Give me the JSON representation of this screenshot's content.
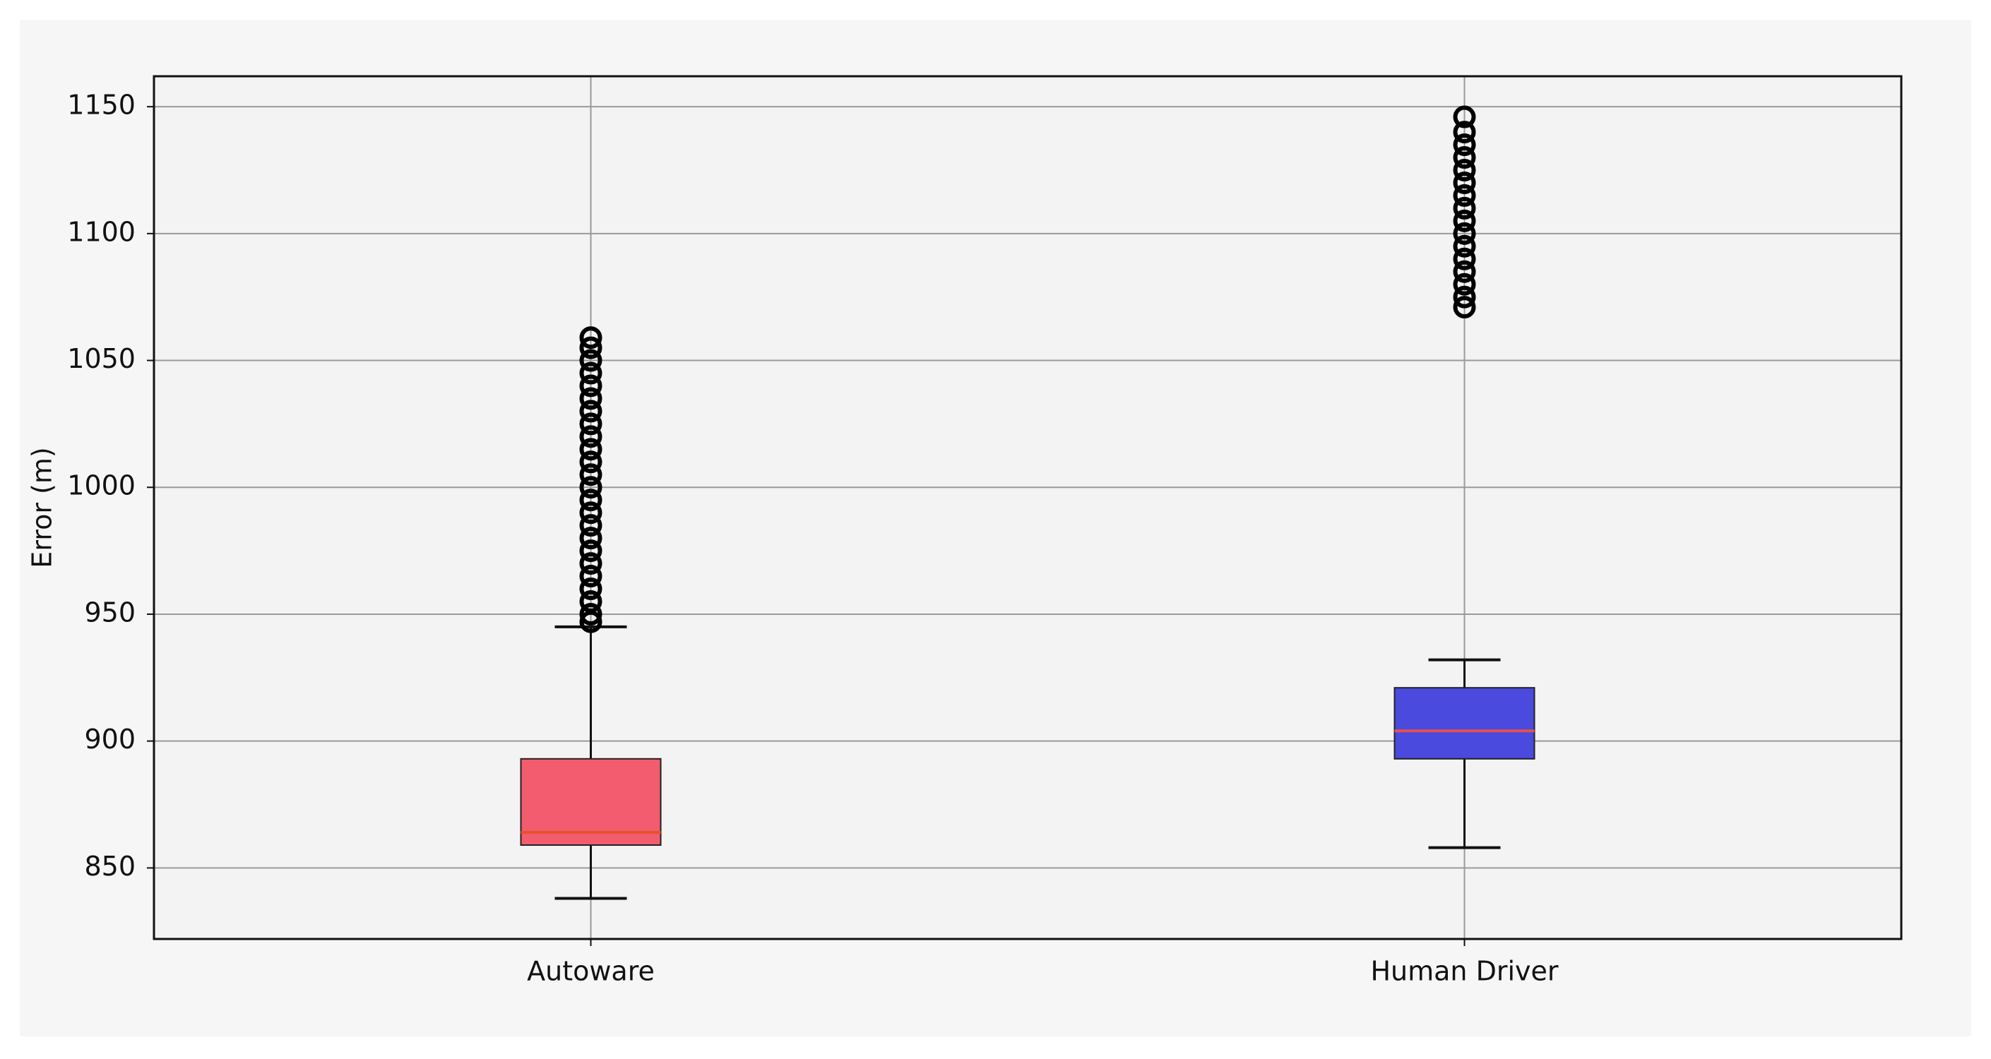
{
  "chart_data": {
    "type": "box",
    "y_label": "Error (m)",
    "ylim": [
      822,
      1162
    ],
    "yticks": [
      850,
      900,
      950,
      1000,
      1050,
      1100,
      1150
    ],
    "grid": true,
    "boxes": [
      {
        "name": "Autoware",
        "color": "#f25c6e",
        "median_color": "#e8502c",
        "whisker_low": 838,
        "q1": 859,
        "median": 864,
        "q3": 893,
        "whisker_high": 945,
        "outliers": [
          947,
          950,
          955,
          960,
          965,
          970,
          975,
          980,
          985,
          990,
          995,
          1000,
          1005,
          1010,
          1015,
          1020,
          1025,
          1030,
          1035,
          1040,
          1045,
          1050,
          1055,
          1059
        ]
      },
      {
        "name": "Human Driver",
        "color": "#4a4ade",
        "median_color": "#e85050",
        "whisker_low": 858,
        "q1": 893,
        "median": 904,
        "q3": 921,
        "whisker_high": 932,
        "outliers": [
          1071,
          1075,
          1080,
          1085,
          1090,
          1095,
          1100,
          1105,
          1110,
          1115,
          1120,
          1125,
          1130,
          1135,
          1140,
          1146
        ]
      }
    ]
  }
}
